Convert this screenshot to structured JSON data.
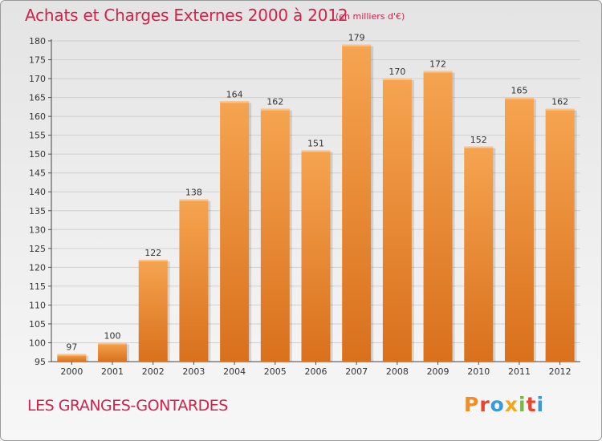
{
  "header": {
    "title": "Achats et Charges Externes 2000 à 2012",
    "unit_note": "(en milliers d'€)"
  },
  "footer": {
    "commune": "LES GRANGES-GONTARDES",
    "logo_letters": [
      "P",
      "r",
      "o",
      "x",
      "i",
      "t",
      "i"
    ],
    "logo_colors": [
      "#f28c28",
      "#e8452f",
      "#3a9ad9",
      "#f2a81d",
      "#7ab648",
      "#e8452f",
      "#3a9ad9"
    ]
  },
  "chart_data": {
    "type": "bar",
    "categories": [
      "2000",
      "2001",
      "2002",
      "2003",
      "2004",
      "2005",
      "2006",
      "2007",
      "2008",
      "2009",
      "2010",
      "2011",
      "2012"
    ],
    "values": [
      97,
      100,
      122,
      138,
      164,
      162,
      151,
      179,
      170,
      172,
      152,
      165,
      162
    ],
    "data_labels": [
      "97",
      "100",
      "122",
      "138",
      "164",
      "162",
      "151",
      "179",
      "170",
      "172",
      "152",
      "165",
      "162"
    ],
    "ylim": [
      95,
      180
    ],
    "yticks": [
      95,
      100,
      105,
      110,
      115,
      120,
      125,
      130,
      135,
      140,
      145,
      150,
      155,
      160,
      165,
      170,
      175,
      180
    ],
    "grid": true,
    "bar_color": "#f28c28",
    "title": "Achats et Charges Externes 2000 à 2012",
    "xlabel": "",
    "ylabel": ""
  }
}
